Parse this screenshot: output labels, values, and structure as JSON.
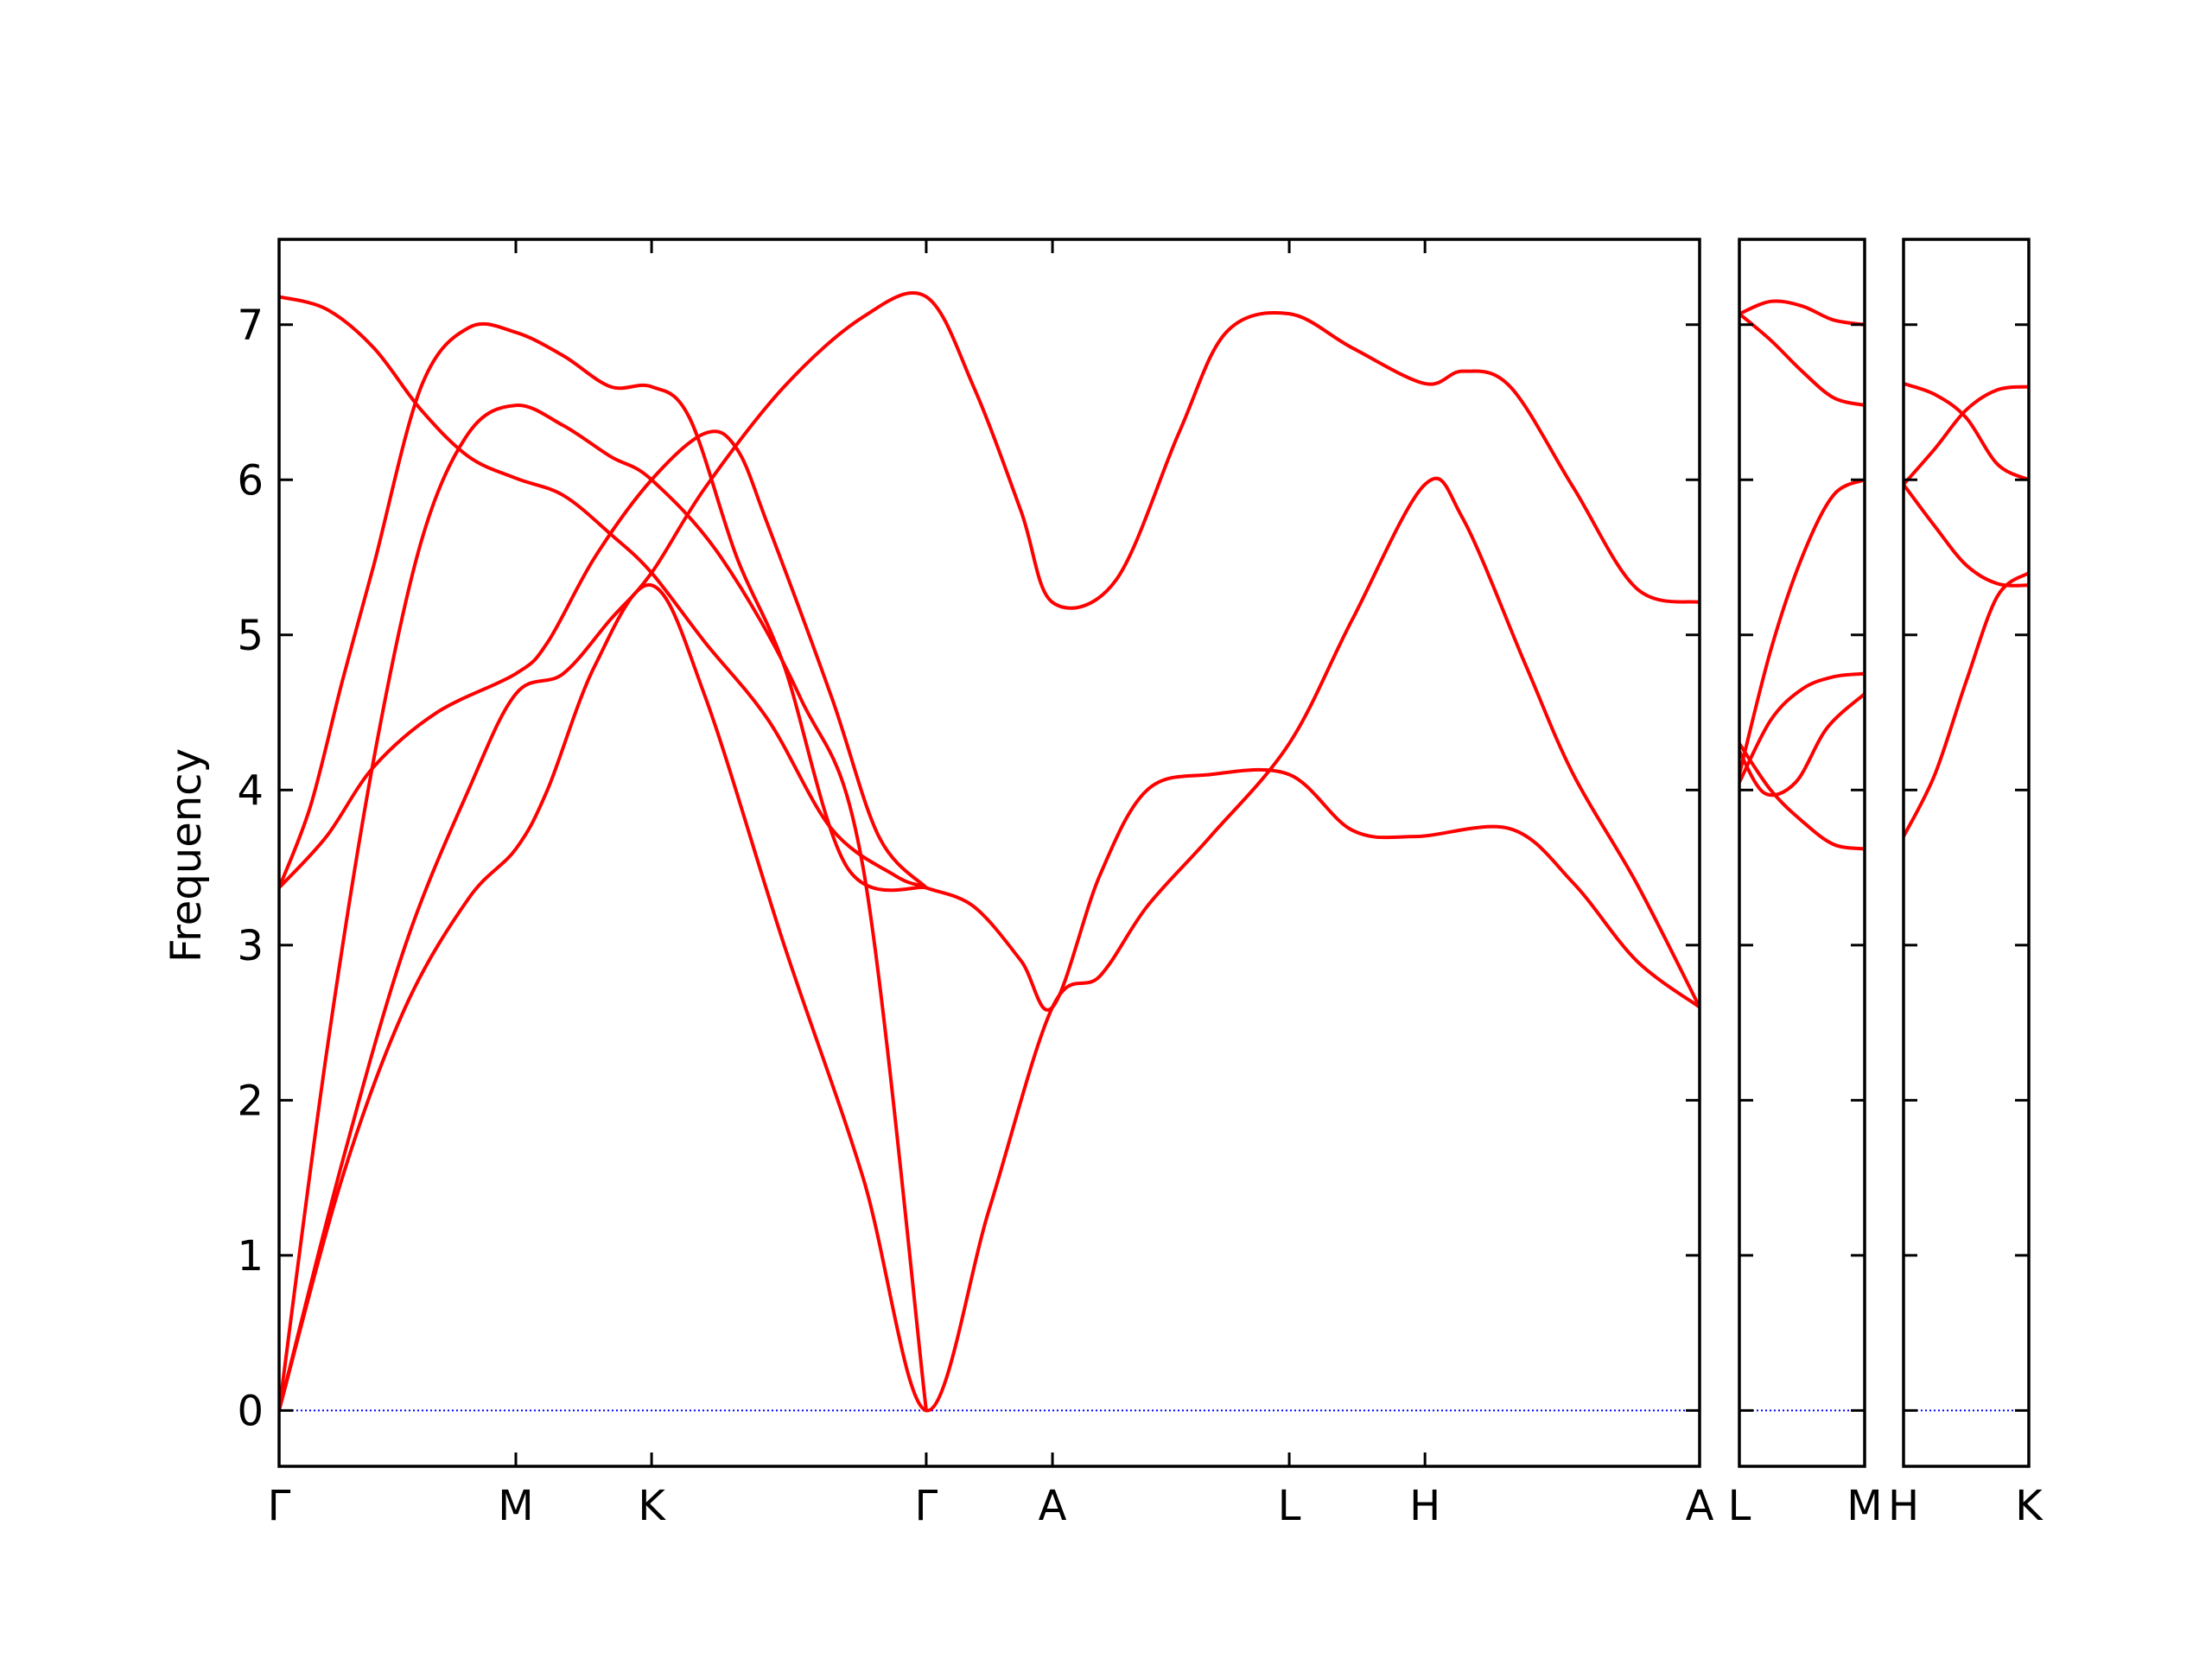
{
  "chart_data": {
    "type": "line",
    "ylabel": "Frequency",
    "xlabel": "",
    "ylim": [
      -0.36,
      7.55
    ],
    "yticks": [
      0,
      1,
      2,
      3,
      4,
      5,
      6,
      7
    ],
    "zero_line_color": "#0000ff",
    "band_color": "#ff0000",
    "grid": false,
    "panels": [
      {
        "id": "panel-1",
        "xlim": [
          0,
          4.5
        ],
        "xticks": [
          {
            "x": 0.0,
            "label": "Γ"
          },
          {
            "x": 0.75,
            "label": "M"
          },
          {
            "x": 1.18,
            "label": "K"
          },
          {
            "x": 2.05,
            "label": "Γ"
          },
          {
            "x": 2.45,
            "label": "A"
          },
          {
            "x": 3.2,
            "label": "L"
          },
          {
            "x": 3.63,
            "label": "H"
          },
          {
            "x": 4.5,
            "label": "A"
          }
        ],
        "branches": [
          {
            "name": "b1",
            "points": [
              [
                0,
                7.18
              ],
              [
                0.15,
                7.1
              ],
              [
                0.3,
                6.85
              ],
              [
                0.45,
                6.45
              ],
              [
                0.6,
                6.15
              ],
              [
                0.75,
                6.01
              ],
              [
                0.9,
                5.9
              ],
              [
                1.05,
                5.65
              ],
              [
                1.18,
                5.4
              ],
              [
                1.35,
                4.95
              ],
              [
                1.55,
                4.45
              ],
              [
                1.75,
                3.75
              ],
              [
                1.95,
                3.45
              ],
              [
                2.05,
                3.37
              ],
              [
                2.2,
                3.25
              ],
              [
                2.35,
                2.9
              ],
              [
                2.45,
                2.6
              ],
              [
                2.6,
                3.45
              ],
              [
                2.75,
                4.0
              ],
              [
                2.95,
                4.1
              ],
              [
                3.2,
                4.1
              ],
              [
                3.4,
                3.74
              ],
              [
                3.6,
                3.7
              ],
              [
                3.9,
                3.75
              ],
              [
                4.1,
                3.4
              ],
              [
                4.3,
                2.9
              ],
              [
                4.5,
                2.6
              ]
            ]
          },
          {
            "name": "b2",
            "points": [
              [
                0,
                3.37
              ],
              [
                0.15,
                3.7
              ],
              [
                0.3,
                4.15
              ],
              [
                0.5,
                4.5
              ],
              [
                0.75,
                4.75
              ],
              [
                0.85,
                4.95
              ],
              [
                1.0,
                5.5
              ],
              [
                1.18,
                6.0
              ],
              [
                1.35,
                6.3
              ],
              [
                1.45,
                6.2
              ],
              [
                1.55,
                5.7
              ],
              [
                1.75,
                4.6
              ],
              [
                1.9,
                3.7
              ],
              [
                2.05,
                3.37
              ]
            ]
          },
          {
            "name": "b3",
            "points": [
              [
                0,
                3.37
              ],
              [
                0.1,
                3.9
              ],
              [
                0.2,
                4.7
              ],
              [
                0.3,
                5.45
              ],
              [
                0.45,
                6.6
              ],
              [
                0.6,
                6.98
              ],
              [
                0.75,
                6.95
              ],
              [
                0.9,
                6.8
              ],
              [
                1.05,
                6.6
              ],
              [
                1.18,
                6.6
              ],
              [
                1.3,
                6.4
              ],
              [
                1.45,
                5.5
              ],
              [
                1.6,
                4.8
              ],
              [
                1.8,
                3.5
              ],
              [
                2.05,
                3.37
              ]
            ]
          },
          {
            "name": "b4",
            "points": [
              [
                0,
                0
              ],
              [
                0.15,
                2.3
              ],
              [
                0.3,
                4.2
              ],
              [
                0.45,
                5.6
              ],
              [
                0.6,
                6.3
              ],
              [
                0.75,
                6.48
              ],
              [
                0.9,
                6.35
              ],
              [
                1.05,
                6.15
              ],
              [
                1.18,
                6.0
              ],
              [
                1.4,
                5.5
              ],
              [
                1.65,
                4.6
              ],
              [
                1.85,
                3.5
              ],
              [
                2.05,
                0
              ]
            ]
          },
          {
            "name": "b5",
            "points": [
              [
                0,
                0
              ],
              [
                0.2,
                1.6
              ],
              [
                0.4,
                3.0
              ],
              [
                0.6,
                4.0
              ],
              [
                0.75,
                4.62
              ],
              [
                0.9,
                4.75
              ],
              [
                1.05,
                5.1
              ],
              [
                1.18,
                5.4
              ],
              [
                1.35,
                5.95
              ],
              [
                1.6,
                6.6
              ],
              [
                1.85,
                7.05
              ],
              [
                2.05,
                7.18
              ],
              [
                2.2,
                6.6
              ],
              [
                2.35,
                5.8
              ],
              [
                2.45,
                5.21
              ],
              [
                2.65,
                5.35
              ],
              [
                2.85,
                6.3
              ],
              [
                3.0,
                6.95
              ],
              [
                3.2,
                7.07
              ],
              [
                3.4,
                6.85
              ],
              [
                3.63,
                6.62
              ],
              [
                3.75,
                6.7
              ],
              [
                3.9,
                6.6
              ],
              [
                4.1,
                5.95
              ],
              [
                4.3,
                5.3
              ],
              [
                4.5,
                5.21
              ]
            ]
          },
          {
            "name": "b6",
            "points": [
              [
                0,
                0
              ],
              [
                0.2,
                1.5
              ],
              [
                0.4,
                2.6
              ],
              [
                0.6,
                3.3
              ],
              [
                0.75,
                3.62
              ],
              [
                0.85,
                4.0
              ],
              [
                1.0,
                4.8
              ],
              [
                1.18,
                5.32
              ],
              [
                1.35,
                4.6
              ],
              [
                1.6,
                3.0
              ],
              [
                1.85,
                1.5
              ],
              [
                2.05,
                0
              ],
              [
                2.25,
                1.3
              ],
              [
                2.45,
                2.6
              ],
              [
                2.6,
                2.8
              ],
              [
                2.75,
                3.25
              ],
              [
                2.95,
                3.7
              ],
              [
                3.2,
                4.3
              ],
              [
                3.4,
                5.1
              ],
              [
                3.63,
                5.97
              ],
              [
                3.75,
                5.75
              ],
              [
                3.95,
                4.8
              ],
              [
                4.1,
                4.1
              ],
              [
                4.3,
                3.4
              ],
              [
                4.5,
                2.6
              ]
            ]
          }
        ]
      },
      {
        "id": "panel-2",
        "xlim": [
          0,
          1
        ],
        "xticks": [
          {
            "x": 0.0,
            "label": "L"
          },
          {
            "x": 1.0,
            "label": "M"
          }
        ],
        "branches": [
          {
            "name": "c1",
            "points": [
              [
                0,
                7.07
              ],
              [
                0.25,
                7.15
              ],
              [
                0.5,
                7.12
              ],
              [
                0.75,
                7.03
              ],
              [
                1.0,
                7.0
              ]
            ]
          },
          {
            "name": "c2",
            "points": [
              [
                0,
                7.07
              ],
              [
                0.25,
                6.9
              ],
              [
                0.5,
                6.7
              ],
              [
                0.75,
                6.53
              ],
              [
                1.0,
                6.48
              ]
            ]
          },
          {
            "name": "c3",
            "points": [
              [
                0,
                4.1
              ],
              [
                0.25,
                4.9
              ],
              [
                0.5,
                5.5
              ],
              [
                0.75,
                5.9
              ],
              [
                1.0,
                6.0
              ]
            ]
          },
          {
            "name": "c4",
            "points": [
              [
                0,
                4.3
              ],
              [
                0.25,
                4.0
              ],
              [
                0.5,
                3.8
              ],
              [
                0.75,
                3.65
              ],
              [
                1.0,
                3.62
              ]
            ]
          },
          {
            "name": "c5",
            "points": [
              [
                0,
                4.05
              ],
              [
                0.25,
                4.45
              ],
              [
                0.5,
                4.65
              ],
              [
                0.75,
                4.73
              ],
              [
                1.0,
                4.75
              ]
            ]
          },
          {
            "name": "c6",
            "points": [
              [
                0,
                4.25
              ],
              [
                0.2,
                3.98
              ],
              [
                0.45,
                4.05
              ],
              [
                0.7,
                4.4
              ],
              [
                1.0,
                4.62
              ]
            ]
          }
        ]
      },
      {
        "id": "panel-3",
        "xlim": [
          0,
          1
        ],
        "xticks": [
          {
            "x": 0.0,
            "label": "H"
          },
          {
            "x": 1.0,
            "label": "K"
          }
        ],
        "branches": [
          {
            "name": "d1",
            "points": [
              [
                0,
                6.62
              ],
              [
                0.25,
                6.55
              ],
              [
                0.5,
                6.4
              ],
              [
                0.75,
                6.1
              ],
              [
                1.0,
                6.0
              ]
            ]
          },
          {
            "name": "d2",
            "points": [
              [
                0,
                5.97
              ],
              [
                0.25,
                6.2
              ],
              [
                0.5,
                6.45
              ],
              [
                0.75,
                6.58
              ],
              [
                1.0,
                6.6
              ]
            ]
          },
          {
            "name": "d3",
            "points": [
              [
                0,
                5.97
              ],
              [
                0.25,
                5.7
              ],
              [
                0.5,
                5.45
              ],
              [
                0.75,
                5.33
              ],
              [
                1.0,
                5.32
              ]
            ]
          },
          {
            "name": "d4",
            "points": [
              [
                0,
                3.7
              ],
              [
                0.25,
                4.1
              ],
              [
                0.5,
                4.7
              ],
              [
                0.75,
                5.25
              ],
              [
                1.0,
                5.4
              ]
            ]
          }
        ]
      }
    ]
  }
}
